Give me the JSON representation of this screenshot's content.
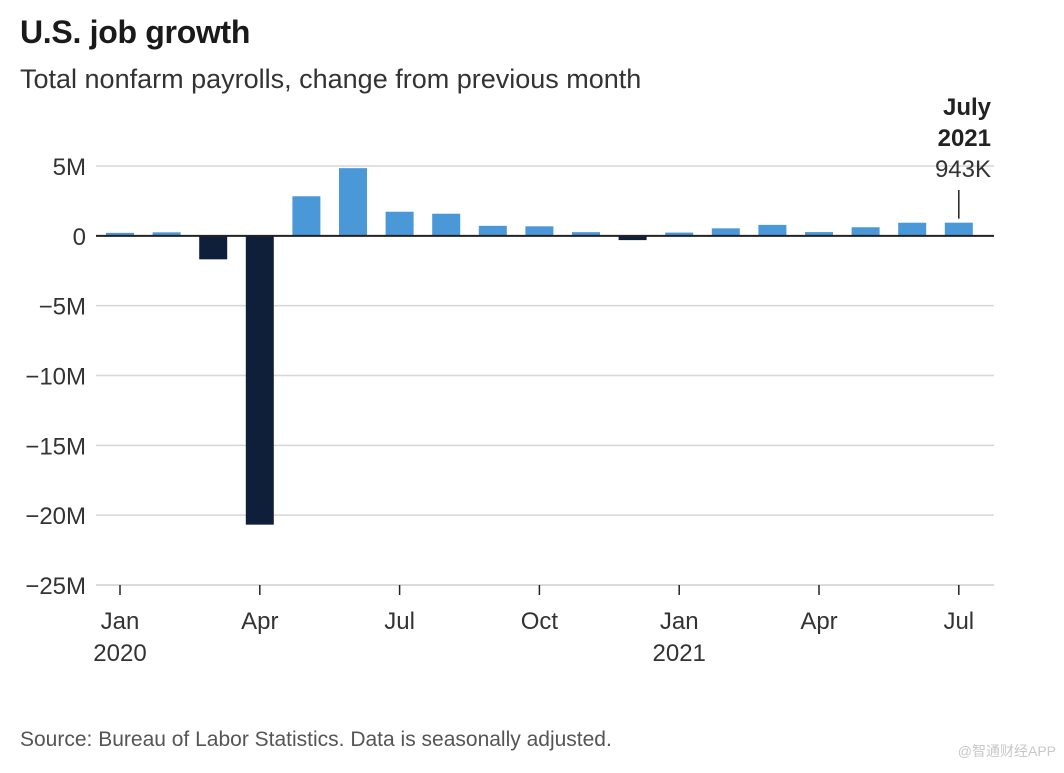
{
  "header": {
    "title": "U.S. job growth",
    "subtitle": "Total nonfarm payrolls, change from previous month"
  },
  "footer": {
    "source": "Source: Bureau of Labor Statistics. Data is seasonally adjusted.",
    "watermark": "@智通财经APP"
  },
  "colors": {
    "positive": "#4a98d8",
    "negative": "#0f1f3a",
    "grid": "#d6d6d6",
    "axis": "#222222"
  },
  "chart_data": {
    "type": "bar",
    "title": "U.S. job growth",
    "subtitle": "Total nonfarm payrolls, change from previous month",
    "xlabel": "",
    "ylabel": "",
    "unit": "thousands of jobs",
    "ylim": [
      -25000,
      5000
    ],
    "yticks": [
      {
        "value": 5000,
        "label": "5M"
      },
      {
        "value": 0,
        "label": "0"
      },
      {
        "value": -5000,
        "label": "−5M"
      },
      {
        "value": -10000,
        "label": "−10M"
      },
      {
        "value": -15000,
        "label": "−15M"
      },
      {
        "value": -20000,
        "label": "−20M"
      },
      {
        "value": -25000,
        "label": "−25M"
      }
    ],
    "categories": [
      "Jan 2020",
      "Feb 2020",
      "Mar 2020",
      "Apr 2020",
      "May 2020",
      "Jun 2020",
      "Jul 2020",
      "Aug 2020",
      "Sep 2020",
      "Oct 2020",
      "Nov 2020",
      "Dec 2020",
      "Jan 2021",
      "Feb 2021",
      "Mar 2021",
      "Apr 2021",
      "May 2021",
      "Jun 2021",
      "Jul 2021"
    ],
    "values": [
      214,
      251,
      -1683,
      -20679,
      2833,
      4846,
      1726,
      1583,
      716,
      680,
      264,
      -306,
      233,
      536,
      785,
      269,
      614,
      938,
      943
    ],
    "xticks": [
      {
        "index": 0,
        "label": "Jan",
        "sublabel": "2020"
      },
      {
        "index": 3,
        "label": "Apr",
        "sublabel": ""
      },
      {
        "index": 6,
        "label": "Jul",
        "sublabel": ""
      },
      {
        "index": 9,
        "label": "Oct",
        "sublabel": ""
      },
      {
        "index": 12,
        "label": "Jan",
        "sublabel": "2021"
      },
      {
        "index": 15,
        "label": "Apr",
        "sublabel": ""
      },
      {
        "index": 18,
        "label": "Jul",
        "sublabel": ""
      }
    ],
    "annotation": {
      "index": 18,
      "line1": "July",
      "line2": "2021",
      "value_label": "943K"
    }
  }
}
